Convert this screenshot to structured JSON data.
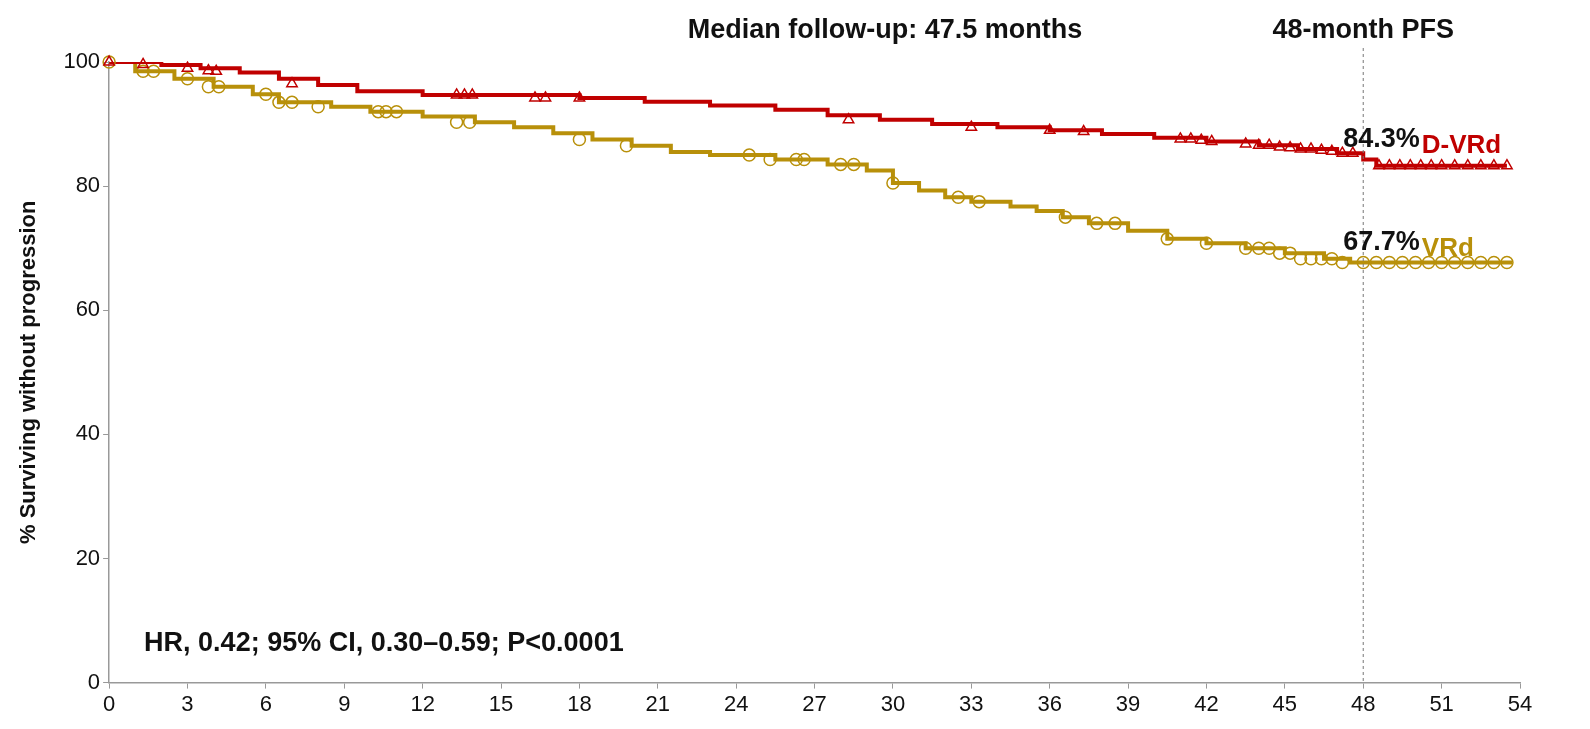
{
  "chart_data": {
    "type": "line",
    "title": "Median follow-up: 47.5 months",
    "y_label": "% Surviving without progression",
    "annotation": "HR, 0.42; 95% CI, 0.30–0.59; P<0.0001",
    "xlim": [
      0,
      54
    ],
    "xticks": [
      0,
      3,
      6,
      9,
      12,
      15,
      18,
      21,
      24,
      27,
      30,
      33,
      36,
      39,
      42,
      45,
      48,
      51,
      54
    ],
    "ylim": [
      0,
      100
    ],
    "yticks": [
      0,
      20,
      40,
      60,
      80,
      100
    ],
    "grid": false,
    "landmark": {
      "x": 48,
      "label": "48-month PFS",
      "line_style": "dashed",
      "values": [
        84.3,
        67.7
      ],
      "value_labels": [
        "84.3%",
        "67.7%"
      ]
    },
    "series": [
      {
        "name": "D-VRd",
        "color": "#c00000",
        "marker": "triangle",
        "line_style": "stepped",
        "x": [
          0,
          2,
          3.5,
          5,
          6.5,
          8,
          9.5,
          12,
          18,
          20.5,
          23,
          25.5,
          27.5,
          29.5,
          31.5,
          34,
          36,
          38,
          40,
          42,
          44,
          45.5,
          47,
          48,
          48.5,
          53.5
        ],
        "values": [
          100,
          99.5,
          99,
          98.3,
          97.3,
          96.3,
          95.3,
          94.7,
          94.2,
          93.6,
          93,
          92.3,
          91.4,
          90.7,
          90,
          89.5,
          89,
          88.4,
          87.8,
          87.2,
          86.6,
          86,
          85.3,
          84.3,
          83.3,
          83.3
        ],
        "censored": {
          "x": [
            0,
            1.3,
            3,
            3.8,
            4.1,
            7,
            13.3,
            13.6,
            13.9,
            16.3,
            16.7,
            18,
            28.3,
            33,
            36,
            37.3,
            41,
            41.4,
            41.8,
            42.2,
            43.5,
            44,
            44.4,
            44.8,
            45.2,
            45.6,
            46,
            46.4,
            46.8,
            47.2,
            47.6,
            48.6,
            49,
            49.4,
            49.8,
            50.2,
            50.6,
            51,
            51.5,
            52,
            52.5,
            53,
            53.5
          ],
          "y": [
            100,
            99.6,
            99,
            98.6,
            98.5,
            96.5,
            94.7,
            94.7,
            94.7,
            94.2,
            94.2,
            94.2,
            90.7,
            89.5,
            89,
            88.8,
            87.6,
            87.6,
            87.4,
            87.2,
            86.8,
            86.6,
            86.6,
            86.3,
            86.2,
            86,
            86,
            85.8,
            85.6,
            85.3,
            85.3,
            83.3,
            83.3,
            83.3,
            83.3,
            83.3,
            83.3,
            83.3,
            83.3,
            83.3,
            83.3,
            83.3,
            83.3
          ]
        }
      },
      {
        "name": "VRd",
        "color": "#b8900a",
        "marker": "circle",
        "line_style": "stepped",
        "x": [
          0,
          1,
          2.5,
          4,
          5.5,
          6.5,
          8.5,
          10,
          12,
          14,
          15.5,
          17,
          18.5,
          20,
          21.5,
          23,
          25.5,
          27.5,
          29,
          30,
          31,
          32,
          33,
          34.5,
          35.5,
          36.5,
          37.5,
          39,
          40.5,
          42,
          43.5,
          45,
          46.5,
          47.5,
          53.7
        ],
        "values": [
          100,
          98.5,
          97.3,
          96,
          94.8,
          93.5,
          92.8,
          92,
          91.2,
          90.3,
          89.5,
          88.5,
          87.5,
          86.5,
          85.5,
          85,
          84.3,
          83.5,
          82.5,
          80.5,
          79.3,
          78.2,
          77.5,
          76.7,
          76,
          75,
          74,
          72.8,
          71.5,
          70.8,
          70,
          69.2,
          68.3,
          67.7,
          67.7
        ],
        "censored": {
          "x": [
            0,
            1.3,
            1.7,
            3,
            3.8,
            4.2,
            6,
            6.5,
            7,
            8,
            10.3,
            10.6,
            11,
            13.3,
            13.8,
            18,
            19.8,
            24.5,
            25.3,
            26.3,
            26.6,
            28,
            28.5,
            30,
            32.5,
            33.3,
            36.6,
            37.8,
            38.5,
            40.5,
            42,
            43.5,
            44,
            44.4,
            44.8,
            45.2,
            45.6,
            46,
            46.4,
            46.8,
            47.2,
            48,
            48.5,
            49,
            49.5,
            50,
            50.5,
            51,
            51.5,
            52,
            52.5,
            53,
            53.5
          ],
          "y": [
            100,
            98.5,
            98.5,
            97.3,
            96,
            96,
            94.8,
            93.5,
            93.5,
            92.8,
            92,
            92,
            92,
            90.3,
            90.3,
            87.5,
            86.5,
            85,
            84.3,
            84.3,
            84.3,
            83.5,
            83.5,
            80.5,
            78.2,
            77.5,
            75,
            74,
            74,
            71.5,
            70.8,
            70,
            70,
            70,
            69.2,
            69.2,
            68.3,
            68.3,
            68.3,
            68.3,
            67.7,
            67.7,
            67.7,
            67.7,
            67.7,
            67.7,
            67.7,
            67.7,
            67.7,
            67.7,
            67.7,
            67.7,
            67.7
          ]
        }
      }
    ]
  }
}
